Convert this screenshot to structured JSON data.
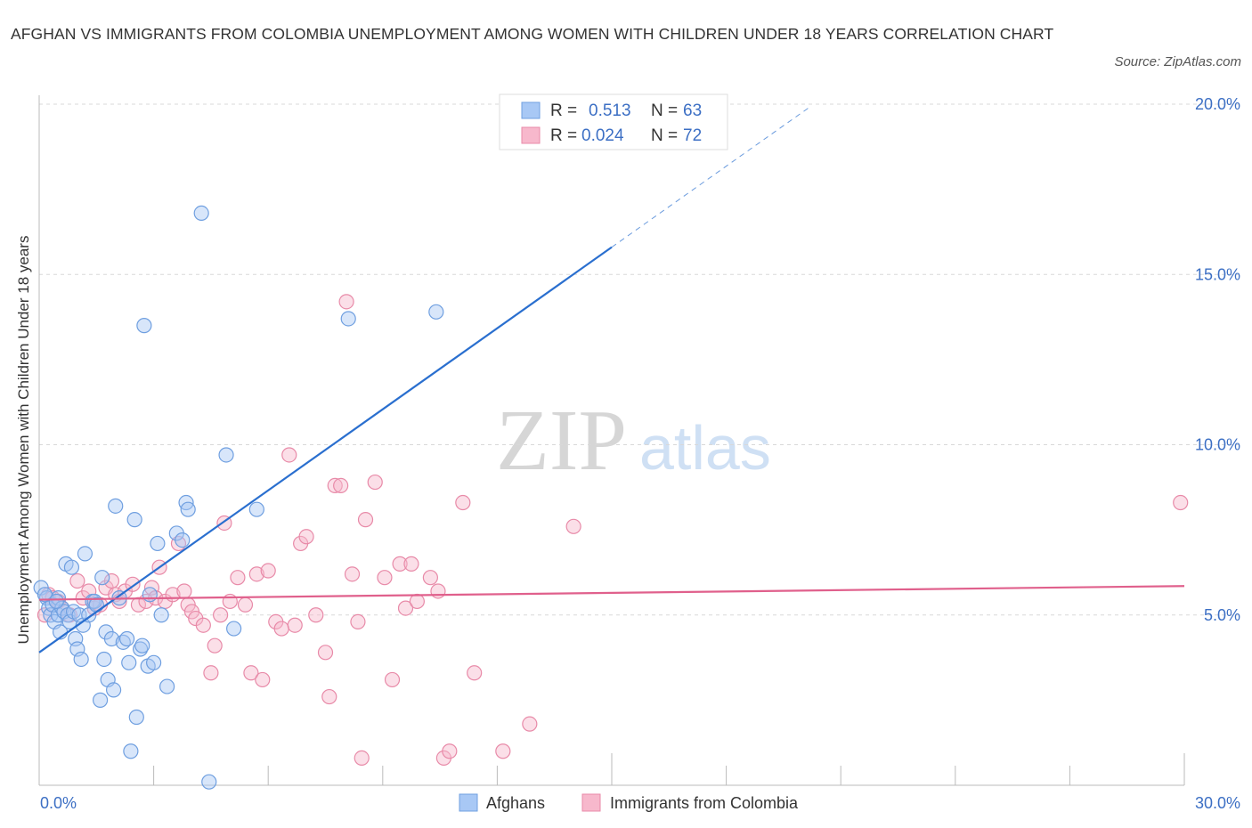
{
  "title": "AFGHAN VS IMMIGRANTS FROM COLOMBIA UNEMPLOYMENT AMONG WOMEN WITH CHILDREN UNDER 18 YEARS CORRELATION CHART",
  "source": "Source: ZipAtlas.com",
  "watermark": {
    "zip": "ZIP",
    "atlas": "atlas"
  },
  "colors": {
    "blue_fill": "#a8c8f5",
    "blue_stroke": "#6f9fe0",
    "blue_line": "#2a6fcf",
    "pink_fill": "#f7b8cc",
    "pink_stroke": "#e88aa8",
    "pink_line": "#e0608c",
    "axis_value": "#3c6fc4",
    "grid": "#d8d8d8"
  },
  "legend": {
    "r_label": "R =",
    "n_label": "N =",
    "blue_r": "0.513",
    "blue_n": "63",
    "pink_r": "0.024",
    "pink_n": "72"
  },
  "chart_data": {
    "type": "scatter",
    "title": "AFGHAN VS IMMIGRANTS FROM COLOMBIA UNEMPLOYMENT AMONG WOMEN WITH CHILDREN UNDER 18 YEARS CORRELATION CHART",
    "xlabel": "",
    "ylabel": "Unemployment Among Women with Children Under 18 years",
    "xlim": [
      0,
      30
    ],
    "ylim": [
      0,
      20
    ],
    "x_tick_labels": [
      "0.0%",
      "30.0%"
    ],
    "y_ticks": [
      5,
      10,
      15,
      20
    ],
    "y_tick_labels": [
      "5.0%",
      "10.0%",
      "15.0%",
      "20.0%"
    ],
    "grid": true,
    "legend_position": "bottom-center",
    "series": [
      {
        "name": "Afghans",
        "color": "blue",
        "R": 0.513,
        "N": 63,
        "trend": {
          "x0": 0,
          "y0": 3.9,
          "x1": 15.0,
          "y1": 15.8,
          "dashed_to_x": 20.2
        },
        "points": [
          [
            0.05,
            5.8
          ],
          [
            0.2,
            5.5
          ],
          [
            0.25,
            5.2
          ],
          [
            0.3,
            5.0
          ],
          [
            0.35,
            5.3
          ],
          [
            0.4,
            4.8
          ],
          [
            0.5,
            5.0
          ],
          [
            0.5,
            5.5
          ],
          [
            0.55,
            4.5
          ],
          [
            0.6,
            5.2
          ],
          [
            0.65,
            5.1
          ],
          [
            0.7,
            6.5
          ],
          [
            0.75,
            5.0
          ],
          [
            0.8,
            4.8
          ],
          [
            0.85,
            6.4
          ],
          [
            0.9,
            5.1
          ],
          [
            0.95,
            4.3
          ],
          [
            1.0,
            4.0
          ],
          [
            1.05,
            5.0
          ],
          [
            1.1,
            3.7
          ],
          [
            1.15,
            4.7
          ],
          [
            1.2,
            6.8
          ],
          [
            1.3,
            5.0
          ],
          [
            1.4,
            5.4
          ],
          [
            1.45,
            5.4
          ],
          [
            1.6,
            2.5
          ],
          [
            1.65,
            6.1
          ],
          [
            1.7,
            3.7
          ],
          [
            1.75,
            4.5
          ],
          [
            1.8,
            3.1
          ],
          [
            1.9,
            4.3
          ],
          [
            1.95,
            2.8
          ],
          [
            2.0,
            8.2
          ],
          [
            2.1,
            5.5
          ],
          [
            2.2,
            4.2
          ],
          [
            2.3,
            4.3
          ],
          [
            2.35,
            3.6
          ],
          [
            2.4,
            1.0
          ],
          [
            2.5,
            7.8
          ],
          [
            2.55,
            2.0
          ],
          [
            2.65,
            4.0
          ],
          [
            2.75,
            13.5
          ],
          [
            2.85,
            3.5
          ],
          [
            2.9,
            5.6
          ],
          [
            3.0,
            3.6
          ],
          [
            3.1,
            7.1
          ],
          [
            3.2,
            5.0
          ],
          [
            3.35,
            2.9
          ],
          [
            3.6,
            7.4
          ],
          [
            3.75,
            7.2
          ],
          [
            3.85,
            8.3
          ],
          [
            3.9,
            8.1
          ],
          [
            4.25,
            16.8
          ],
          [
            4.45,
            0.1
          ],
          [
            4.9,
            9.7
          ],
          [
            5.1,
            4.6
          ],
          [
            5.7,
            8.1
          ],
          [
            8.1,
            13.7
          ],
          [
            10.4,
            13.9
          ],
          [
            0.15,
            5.6
          ],
          [
            0.45,
            5.4
          ],
          [
            1.5,
            5.3
          ],
          [
            2.7,
            4.1
          ]
        ]
      },
      {
        "name": "Immigrants from Colombia",
        "color": "pink",
        "R": 0.024,
        "N": 72,
        "trend": {
          "x0": 0,
          "y0": 5.45,
          "x1": 30,
          "y1": 5.85
        },
        "points": [
          [
            0.15,
            5.0
          ],
          [
            0.25,
            5.6
          ],
          [
            0.35,
            5.5
          ],
          [
            0.5,
            5.4
          ],
          [
            0.6,
            5.2
          ],
          [
            0.8,
            5.0
          ],
          [
            1.0,
            6.0
          ],
          [
            1.15,
            5.5
          ],
          [
            1.3,
            5.7
          ],
          [
            1.45,
            5.2
          ],
          [
            1.6,
            5.3
          ],
          [
            1.75,
            5.8
          ],
          [
            1.9,
            6.0
          ],
          [
            2.0,
            5.6
          ],
          [
            2.1,
            5.4
          ],
          [
            2.25,
            5.7
          ],
          [
            2.45,
            5.9
          ],
          [
            2.6,
            5.3
          ],
          [
            2.8,
            5.4
          ],
          [
            2.95,
            5.8
          ],
          [
            3.05,
            5.5
          ],
          [
            3.15,
            6.4
          ],
          [
            3.3,
            5.4
          ],
          [
            3.5,
            5.6
          ],
          [
            3.65,
            7.1
          ],
          [
            3.8,
            5.7
          ],
          [
            3.9,
            5.3
          ],
          [
            4.0,
            5.1
          ],
          [
            4.1,
            4.9
          ],
          [
            4.3,
            4.7
          ],
          [
            4.5,
            3.3
          ],
          [
            4.6,
            4.1
          ],
          [
            4.75,
            5.0
          ],
          [
            4.85,
            7.7
          ],
          [
            5.0,
            5.4
          ],
          [
            5.2,
            6.1
          ],
          [
            5.4,
            5.3
          ],
          [
            5.55,
            3.3
          ],
          [
            5.7,
            6.2
          ],
          [
            5.85,
            3.1
          ],
          [
            6.0,
            6.3
          ],
          [
            6.2,
            4.8
          ],
          [
            6.35,
            4.6
          ],
          [
            6.55,
            9.7
          ],
          [
            6.7,
            4.7
          ],
          [
            6.85,
            7.1
          ],
          [
            7.0,
            7.3
          ],
          [
            7.25,
            5.0
          ],
          [
            7.5,
            3.9
          ],
          [
            7.6,
            2.6
          ],
          [
            7.75,
            8.8
          ],
          [
            7.9,
            8.8
          ],
          [
            8.05,
            14.2
          ],
          [
            8.2,
            6.2
          ],
          [
            8.35,
            4.8
          ],
          [
            8.45,
            0.8
          ],
          [
            8.55,
            7.8
          ],
          [
            8.8,
            8.9
          ],
          [
            9.05,
            6.1
          ],
          [
            9.25,
            3.1
          ],
          [
            9.45,
            6.5
          ],
          [
            9.6,
            5.2
          ],
          [
            9.75,
            6.5
          ],
          [
            9.9,
            5.4
          ],
          [
            10.25,
            6.1
          ],
          [
            10.45,
            5.7
          ],
          [
            10.6,
            0.8
          ],
          [
            10.75,
            1.0
          ],
          [
            11.1,
            8.3
          ],
          [
            11.4,
            3.3
          ],
          [
            12.15,
            1.0
          ],
          [
            12.85,
            1.8
          ]
        ],
        "outlier_points": [
          [
            14.0,
            7.6
          ],
          [
            29.9,
            8.3
          ]
        ]
      }
    ],
    "bottom_legend": [
      "Afghans",
      "Immigrants from Colombia"
    ]
  }
}
